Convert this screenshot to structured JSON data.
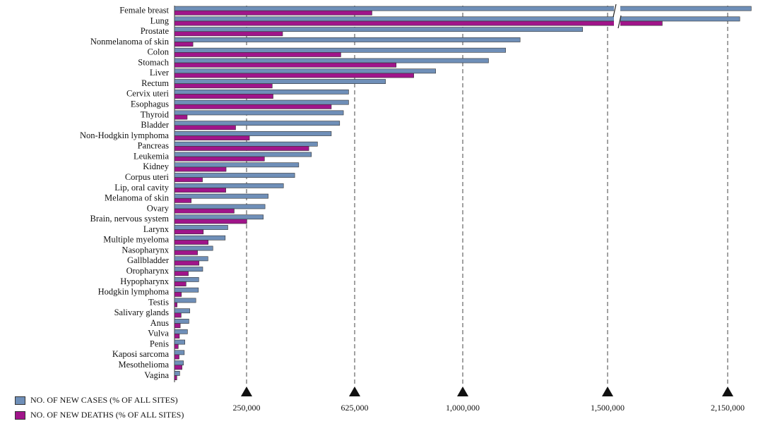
{
  "chart_data": {
    "type": "bar",
    "orientation": "horizontal",
    "categories": [
      "Female breast",
      "Lung",
      "Prostate",
      "Nonmelanoma of skin",
      "Colon",
      "Stomach",
      "Liver",
      "Rectum",
      "Cervix uteri",
      "Esophagus",
      "Thyroid",
      "Bladder",
      "Non-Hodgkin lymphoma",
      "Pancreas",
      "Leukemia",
      "Kidney",
      "Corpus uteri",
      "Lip, oral cavity",
      "Melanoma of skin",
      "Ovary",
      "Brain, nervous system",
      "Larynx",
      "Multiple myeloma",
      "Nasopharynx",
      "Gallbladder",
      "Oropharynx",
      "Hypopharynx",
      "Hodgkin lymphoma",
      "Testis",
      "Salivary glands",
      "Anus",
      "Vulva",
      "Penis",
      "Kaposi sarcoma",
      "Mesothelioma",
      "Vagina"
    ],
    "series": [
      {
        "name": "NO. OF NEW CASES (% OF ALL SITES)",
        "color": "#6f8fb8",
        "values": [
          2261000,
          2207000,
          1414000,
          1198000,
          1148000,
          1089000,
          906000,
          732000,
          604000,
          604000,
          586000,
          573000,
          544000,
          496000,
          475000,
          431000,
          417000,
          378000,
          325000,
          314000,
          308000,
          185000,
          176000,
          133000,
          116000,
          98000,
          84000,
          83000,
          74000,
          53000,
          50000,
          45000,
          36000,
          34000,
          31000,
          18000
        ]
      },
      {
        "name": "NO. OF NEW DEATHS (% OF ALL SITES)",
        "color": "#a0158a",
        "values": [
          685000,
          1796000,
          375000,
          64000,
          577000,
          769000,
          830000,
          339000,
          342000,
          544000,
          44000,
          212000,
          260000,
          466000,
          312000,
          179000,
          97000,
          178000,
          58000,
          207000,
          251000,
          100000,
          117000,
          80000,
          85000,
          48000,
          40000,
          24000,
          9000,
          23000,
          20000,
          17000,
          13000,
          16000,
          26000,
          8000
        ]
      }
    ],
    "xticks": [
      250000,
      625000,
      1000000,
      1500000,
      2150000
    ],
    "xtick_labels": [
      "250,000",
      "625,000",
      "1,000,000",
      "1,500,000",
      "2,150,000"
    ],
    "axis_break": true,
    "gridlines": "dashed-vertical",
    "legend_position": "bottom-left"
  }
}
